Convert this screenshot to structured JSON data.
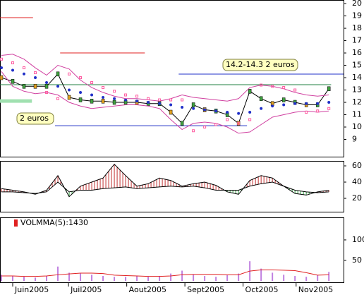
{
  "chart_data": [
    {
      "type": "price",
      "x": [
        0,
        1,
        2,
        3,
        4,
        5,
        6,
        7,
        8,
        9,
        10,
        11,
        12,
        13,
        14,
        15,
        16,
        17,
        18,
        19,
        20,
        21,
        22,
        23,
        24,
        25,
        26,
        27,
        28,
        29
      ],
      "xlim": [
        -0.125,
        30.3
      ],
      "xticks": [
        {
          "value": 1,
          "label": "Juin2005"
        },
        {
          "value": 5.94,
          "label": "Juil2005"
        },
        {
          "value": 11.1,
          "label": "Aout2005"
        },
        {
          "value": 16.25,
          "label": "Sept2005"
        },
        {
          "value": 21.4,
          "label": "Oct2005"
        },
        {
          "value": 26.1,
          "label": "Nov2005"
        }
      ],
      "ylim": [
        7.6,
        20.29
      ],
      "yticks": [
        9,
        10,
        11,
        12,
        13,
        14,
        15,
        16,
        17,
        18,
        19,
        20
      ],
      "series": [
        {
          "name": "close",
          "color": "#000000",
          "values": [
            14.0,
            13.7,
            13.3,
            13.3,
            13.3,
            14.3,
            12.4,
            12.2,
            12.1,
            12.1,
            12.0,
            12.0,
            12.0,
            11.9,
            11.9,
            11.2,
            10.3,
            11.8,
            11.4,
            11.3,
            11.0,
            10.3,
            12.9,
            12.3,
            11.9,
            12.2,
            12.0,
            11.8,
            11.8,
            13.1
          ]
        },
        {
          "name": "ma",
          "color": "#2030c8",
          "values": [
            14.8,
            14.6,
            14.3,
            14.0,
            13.6,
            13.3,
            13.0,
            12.8,
            12.6,
            12.4,
            12.3,
            12.2,
            12.1,
            12.0,
            11.9,
            11.8,
            11.6,
            11.5,
            11.4,
            11.3,
            11.2,
            11.1,
            11.2,
            11.5,
            11.7,
            11.8,
            11.9,
            11.9,
            11.9,
            12.0
          ]
        },
        {
          "name": "upper",
          "color": "#d040a0",
          "values": [
            15.8,
            15.9,
            15.5,
            14.8,
            14.2,
            15.0,
            14.7,
            13.8,
            13.2,
            12.8,
            12.5,
            12.3,
            12.3,
            12.2,
            12.1,
            12.3,
            12.6,
            12.4,
            12.3,
            12.2,
            12.1,
            12.3,
            13.2,
            13.4,
            13.3,
            13.1,
            12.8,
            12.6,
            12.5,
            12.6
          ]
        },
        {
          "name": "lower",
          "color": "#d040a0",
          "values": [
            14.5,
            13.3,
            12.9,
            12.7,
            12.8,
            12.6,
            12.0,
            11.7,
            11.5,
            11.6,
            11.7,
            11.8,
            11.8,
            11.7,
            11.5,
            10.6,
            9.8,
            10.3,
            10.4,
            10.3,
            10.0,
            9.5,
            9.6,
            10.2,
            10.8,
            11.0,
            11.2,
            11.3,
            11.2,
            11.3
          ]
        },
        {
          "name": "sar",
          "color": "#ff5aa0",
          "values": [
            15.5,
            15.2,
            14.8,
            14.4,
            12.8,
            12.3,
            14.3,
            14.0,
            13.6,
            13.2,
            12.9,
            12.6,
            12.5,
            12.3,
            12.2,
            12.2,
            12.2,
            9.7,
            10.0,
            10.2,
            10.6,
            10.3,
            10.6,
            13.4,
            13.3,
            13.2,
            13.0,
            11.2,
            11.3,
            11.5
          ]
        }
      ],
      "hlines": [
        {
          "value": 18.86,
          "x": [
            -0.125,
            2.8
          ],
          "color": "#e02020"
        },
        {
          "value": 16.0,
          "x": [
            5.2,
            12.7
          ],
          "color": "#e02020"
        },
        {
          "value": 14.29,
          "x": [
            15.7,
            30.3
          ],
          "color": "#2030c8"
        },
        {
          "value": 13.43,
          "x": [
            -0.125,
            29.2
          ],
          "color": "#208040"
        },
        {
          "value": 10.11,
          "x": [
            4.75,
            21.75
          ],
          "color": "#2030c8"
        },
        {
          "value": 12.11,
          "x": [
            -0.125,
            2.7
          ],
          "color": "#a0e0b0"
        }
      ],
      "annotations": [
        "14.2-14.3 2 euros",
        "2 euros"
      ]
    },
    {
      "type": "oscillator",
      "ylim": [
        3.5,
        66.1
      ],
      "yticks": [
        20,
        40,
        60
      ],
      "series": [
        {
          "name": "a",
          "color": "#000000",
          "values": [
            32,
            30,
            28,
            25,
            30,
            48,
            22,
            35,
            40,
            45,
            62,
            48,
            35,
            38,
            45,
            42,
            35,
            38,
            40,
            36,
            28,
            25,
            42,
            48,
            45,
            35,
            26,
            24,
            28,
            30
          ]
        },
        {
          "name": "b",
          "color": "#000000",
          "values": [
            28,
            28,
            27,
            26,
            28,
            40,
            28,
            30,
            30,
            32,
            33,
            34,
            32,
            33,
            34,
            35,
            34,
            35,
            33,
            30,
            30,
            30,
            35,
            38,
            40,
            35,
            30,
            28,
            27,
            28
          ]
        }
      ],
      "up_color": "#c03030",
      "down_color": "#30a040"
    },
    {
      "type": "volume",
      "legend_name": "VOLMMA(5):",
      "legend_value": 1430,
      "ylim": [
        -3.4,
        155
      ],
      "yticks": [
        50,
        100
      ],
      "series": [
        {
          "name": "volume",
          "color": "#c080e0",
          "values": [
            15,
            12,
            10,
            8,
            12,
            35,
            20,
            18,
            15,
            12,
            10,
            10,
            12,
            10,
            12,
            18,
            25,
            15,
            12,
            10,
            14,
            18,
            48,
            30,
            20,
            15,
            12,
            10,
            14,
            22
          ]
        },
        {
          "name": "volmma",
          "color": "#e02020",
          "values": [
            12,
            12,
            11,
            11,
            12,
            15,
            17,
            19,
            19,
            18,
            14,
            13,
            12,
            11,
            11,
            12,
            15,
            16,
            16,
            16,
            15,
            15,
            24,
            27,
            27,
            26,
            25,
            20,
            14,
            15
          ]
        }
      ]
    }
  ]
}
